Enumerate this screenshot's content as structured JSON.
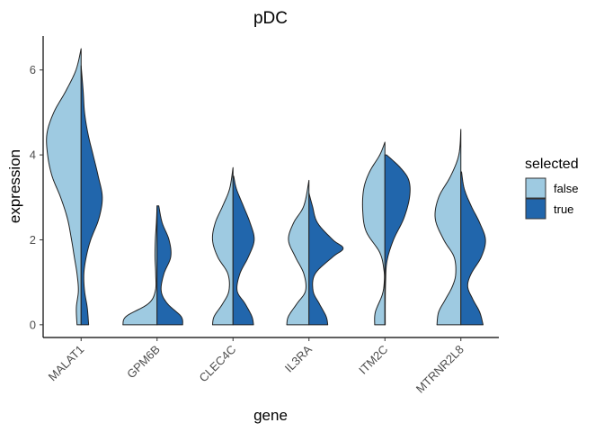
{
  "chart_data": {
    "type": "split-violin",
    "title": "pDC",
    "xlabel": "gene",
    "ylabel": "expression",
    "ylim": [
      -0.3,
      6.8
    ],
    "yticks": [
      0,
      2,
      4,
      6
    ],
    "grid": false,
    "legend": {
      "title": "selected",
      "placement": "right",
      "entries": [
        {
          "label": "false",
          "color": "#9ecae1"
        },
        {
          "label": "true",
          "color": "#2166ac"
        }
      ]
    },
    "categories": [
      "MALAT1",
      "GPM6B",
      "CLEC4C",
      "IL3RA",
      "ITM2C",
      "MTRNR2L8"
    ],
    "series": [
      {
        "name": "false",
        "side": "left",
        "color": "#9ecae1",
        "violins": [
          {
            "min": 0,
            "max": 6.5,
            "profile": [
              [
                0,
                0.12
              ],
              [
                0.4,
                0.14
              ],
              [
                0.8,
                0.08
              ],
              [
                1.2,
                0.12
              ],
              [
                1.6,
                0.2
              ],
              [
                2.0,
                0.28
              ],
              [
                2.5,
                0.4
              ],
              [
                3.0,
                0.6
              ],
              [
                3.5,
                0.85
              ],
              [
                4.0,
                0.98
              ],
              [
                4.5,
                1.0
              ],
              [
                5.0,
                0.8
              ],
              [
                5.5,
                0.45
              ],
              [
                6.0,
                0.15
              ],
              [
                6.5,
                0.0
              ]
            ]
          },
          {
            "min": 0,
            "max": 2.8,
            "profile": [
              [
                0,
                1.0
              ],
              [
                0.2,
                0.9
              ],
              [
                0.5,
                0.25
              ],
              [
                0.8,
                0.05
              ],
              [
                1.2,
                0.04
              ],
              [
                1.6,
                0.06
              ],
              [
                2.0,
                0.05
              ],
              [
                2.4,
                0.02
              ],
              [
                2.8,
                0.0
              ]
            ]
          },
          {
            "min": 0,
            "max": 3.7,
            "profile": [
              [
                0,
                0.6
              ],
              [
                0.2,
                0.55
              ],
              [
                0.5,
                0.3
              ],
              [
                0.8,
                0.12
              ],
              [
                1.2,
                0.15
              ],
              [
                1.6,
                0.45
              ],
              [
                2.0,
                0.6
              ],
              [
                2.4,
                0.52
              ],
              [
                2.8,
                0.3
              ],
              [
                3.2,
                0.1
              ],
              [
                3.7,
                0.0
              ]
            ]
          },
          {
            "min": 0,
            "max": 3.4,
            "profile": [
              [
                0,
                0.65
              ],
              [
                0.2,
                0.6
              ],
              [
                0.5,
                0.35
              ],
              [
                0.8,
                0.1
              ],
              [
                1.2,
                0.15
              ],
              [
                1.6,
                0.4
              ],
              [
                2.0,
                0.6
              ],
              [
                2.4,
                0.45
              ],
              [
                2.8,
                0.15
              ],
              [
                3.4,
                0.0
              ]
            ]
          },
          {
            "min": 0,
            "max": 4.3,
            "profile": [
              [
                0,
                0.3
              ],
              [
                0.3,
                0.28
              ],
              [
                0.7,
                0.08
              ],
              [
                1.0,
                0.02
              ],
              [
                1.3,
                0.03
              ],
              [
                1.7,
                0.15
              ],
              [
                2.2,
                0.55
              ],
              [
                2.7,
                0.65
              ],
              [
                3.2,
                0.62
              ],
              [
                3.6,
                0.45
              ],
              [
                4.0,
                0.15
              ],
              [
                4.3,
                0.0
              ]
            ]
          },
          {
            "min": 0,
            "max": 4.6,
            "profile": [
              [
                0,
                0.7
              ],
              [
                0.3,
                0.65
              ],
              [
                0.6,
                0.45
              ],
              [
                0.9,
                0.25
              ],
              [
                1.2,
                0.15
              ],
              [
                1.6,
                0.2
              ],
              [
                2.0,
                0.5
              ],
              [
                2.5,
                0.75
              ],
              [
                3.0,
                0.65
              ],
              [
                3.5,
                0.3
              ],
              [
                4.0,
                0.06
              ],
              [
                4.6,
                0.0
              ]
            ]
          }
        ]
      },
      {
        "name": "true",
        "side": "right",
        "color": "#2166ac",
        "violins": [
          {
            "min": 0,
            "max": 6.1,
            "profile": [
              [
                0,
                0.22
              ],
              [
                0.4,
                0.18
              ],
              [
                0.8,
                0.1
              ],
              [
                1.2,
                0.08
              ],
              [
                1.6,
                0.15
              ],
              [
                2.0,
                0.28
              ],
              [
                2.5,
                0.52
              ],
              [
                3.0,
                0.62
              ],
              [
                3.5,
                0.5
              ],
              [
                4.0,
                0.35
              ],
              [
                4.5,
                0.2
              ],
              [
                5.0,
                0.1
              ],
              [
                5.5,
                0.06
              ],
              [
                6.1,
                0.0
              ]
            ]
          },
          {
            "min": 0,
            "max": 2.8,
            "profile": [
              [
                0,
                0.75
              ],
              [
                0.2,
                0.7
              ],
              [
                0.5,
                0.3
              ],
              [
                0.8,
                0.12
              ],
              [
                1.2,
                0.2
              ],
              [
                1.6,
                0.4
              ],
              [
                2.0,
                0.35
              ],
              [
                2.4,
                0.15
              ],
              [
                2.8,
                0.05
              ]
            ]
          },
          {
            "min": 0,
            "max": 3.5,
            "profile": [
              [
                0,
                0.6
              ],
              [
                0.2,
                0.55
              ],
              [
                0.5,
                0.35
              ],
              [
                0.8,
                0.12
              ],
              [
                1.2,
                0.2
              ],
              [
                1.6,
                0.45
              ],
              [
                2.0,
                0.62
              ],
              [
                2.4,
                0.5
              ],
              [
                2.8,
                0.3
              ],
              [
                3.2,
                0.1
              ],
              [
                3.5,
                0.02
              ]
            ]
          },
          {
            "min": 0,
            "max": 3.1,
            "profile": [
              [
                0,
                0.55
              ],
              [
                0.2,
                0.5
              ],
              [
                0.5,
                0.3
              ],
              [
                0.8,
                0.12
              ],
              [
                1.2,
                0.18
              ],
              [
                1.6,
                0.7
              ],
              [
                1.8,
                1.0
              ],
              [
                2.0,
                0.7
              ],
              [
                2.4,
                0.25
              ],
              [
                2.8,
                0.1
              ],
              [
                3.1,
                0.0
              ]
            ]
          },
          {
            "min": 0,
            "max": 4.0,
            "profile": [
              [
                0,
                0.01
              ],
              [
                0.5,
                0.01
              ],
              [
                1.0,
                0.02
              ],
              [
                1.5,
                0.06
              ],
              [
                2.0,
                0.25
              ],
              [
                2.5,
                0.55
              ],
              [
                3.0,
                0.72
              ],
              [
                3.4,
                0.7
              ],
              [
                3.7,
                0.45
              ],
              [
                4.0,
                0.05
              ]
            ]
          },
          {
            "min": 0,
            "max": 3.6,
            "profile": [
              [
                0,
                0.65
              ],
              [
                0.3,
                0.55
              ],
              [
                0.6,
                0.35
              ],
              [
                0.9,
                0.2
              ],
              [
                1.2,
                0.3
              ],
              [
                1.6,
                0.6
              ],
              [
                2.0,
                0.72
              ],
              [
                2.4,
                0.55
              ],
              [
                2.8,
                0.3
              ],
              [
                3.2,
                0.1
              ],
              [
                3.6,
                0.02
              ]
            ]
          }
        ]
      }
    ]
  }
}
